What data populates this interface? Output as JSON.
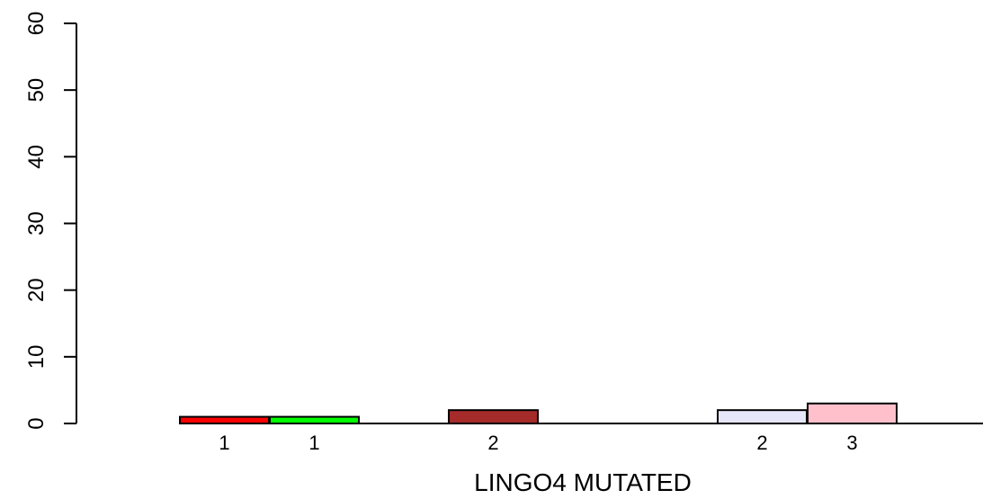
{
  "chart_data": {
    "type": "bar",
    "xlabel": "LINGO4 MUTATED",
    "ylabel": "",
    "ylim": [
      0,
      60
    ],
    "yticks": [
      0,
      10,
      20,
      30,
      40,
      50,
      60
    ],
    "grid": false,
    "bars": [
      {
        "value": 1,
        "label": "1",
        "color": "#ff0000"
      },
      {
        "value": 1,
        "label": "1",
        "color": "#00ff00"
      },
      {
        "value": 2,
        "label": "2",
        "color": "#a52a2a"
      },
      {
        "value": 2,
        "label": "2",
        "color": "#e6e6fa"
      },
      {
        "value": 3,
        "label": "3",
        "color": "#ffc0cb"
      }
    ]
  }
}
